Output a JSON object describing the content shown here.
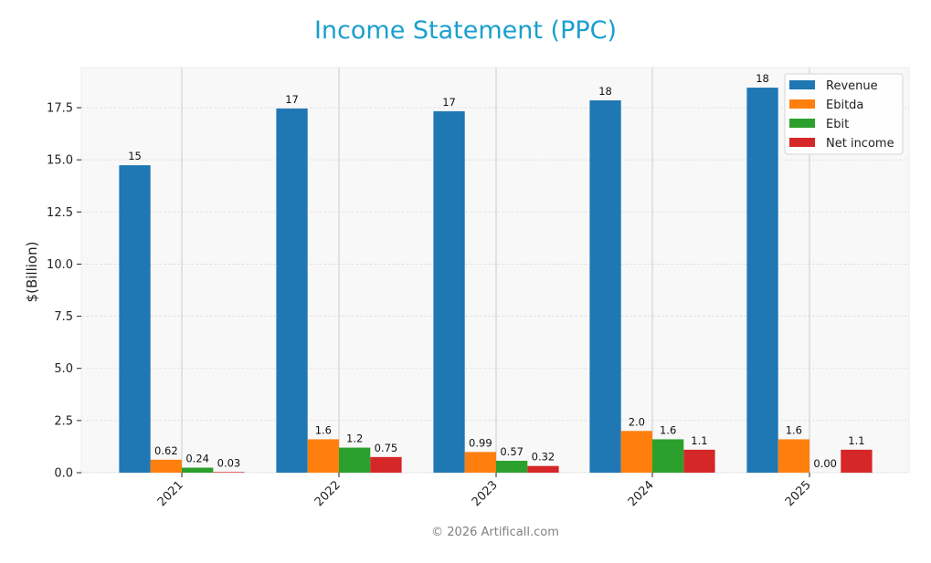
{
  "title": "Income Statement (PPC)",
  "footer": "© 2026 Artificall.com",
  "colors": {
    "title": "#1a9fce",
    "Revenue": "#1f77b4",
    "Ebitda": "#ff7f0e",
    "Ebit": "#2ca02c",
    "Net income": "#d62728",
    "plot_bg": "#f8f8f8"
  },
  "chart_data": {
    "type": "bar",
    "title": "Income Statement (PPC)",
    "xlabel": "",
    "ylabel": "$(Billion)",
    "ylim": [
      0,
      19.4
    ],
    "yticks": [
      0.0,
      2.5,
      5.0,
      7.5,
      10.0,
      12.5,
      15.0,
      17.5
    ],
    "ytick_labels": [
      "0.0",
      "2.5",
      "5.0",
      "7.5",
      "10.0",
      "12.5",
      "15.0",
      "17.5"
    ],
    "categories": [
      "2021",
      "2022",
      "2023",
      "2024",
      "2025"
    ],
    "series": [
      {
        "name": "Revenue",
        "values": [
          14.74,
          17.46,
          17.33,
          17.85,
          18.46
        ],
        "labels": [
          "15",
          "17",
          "17",
          "18",
          "18"
        ]
      },
      {
        "name": "Ebitda",
        "values": [
          0.62,
          1.6,
          0.99,
          2.0,
          1.6
        ],
        "labels": [
          "0.62",
          "1.6",
          "0.99",
          "2.0",
          "1.6"
        ]
      },
      {
        "name": "Ebit",
        "values": [
          0.24,
          1.2,
          0.57,
          1.6,
          0.0
        ],
        "labels": [
          "0.24",
          "1.2",
          "0.57",
          "1.6",
          "0.00"
        ]
      },
      {
        "name": "Net income",
        "values": [
          0.03,
          0.75,
          0.32,
          1.1,
          1.1
        ],
        "labels": [
          "0.03",
          "0.75",
          "0.32",
          "1.1",
          "1.1"
        ]
      }
    ],
    "legend": {
      "position": "upper right",
      "entries": [
        "Revenue",
        "Ebitda",
        "Ebit",
        "Net income"
      ]
    },
    "grid": true
  }
}
